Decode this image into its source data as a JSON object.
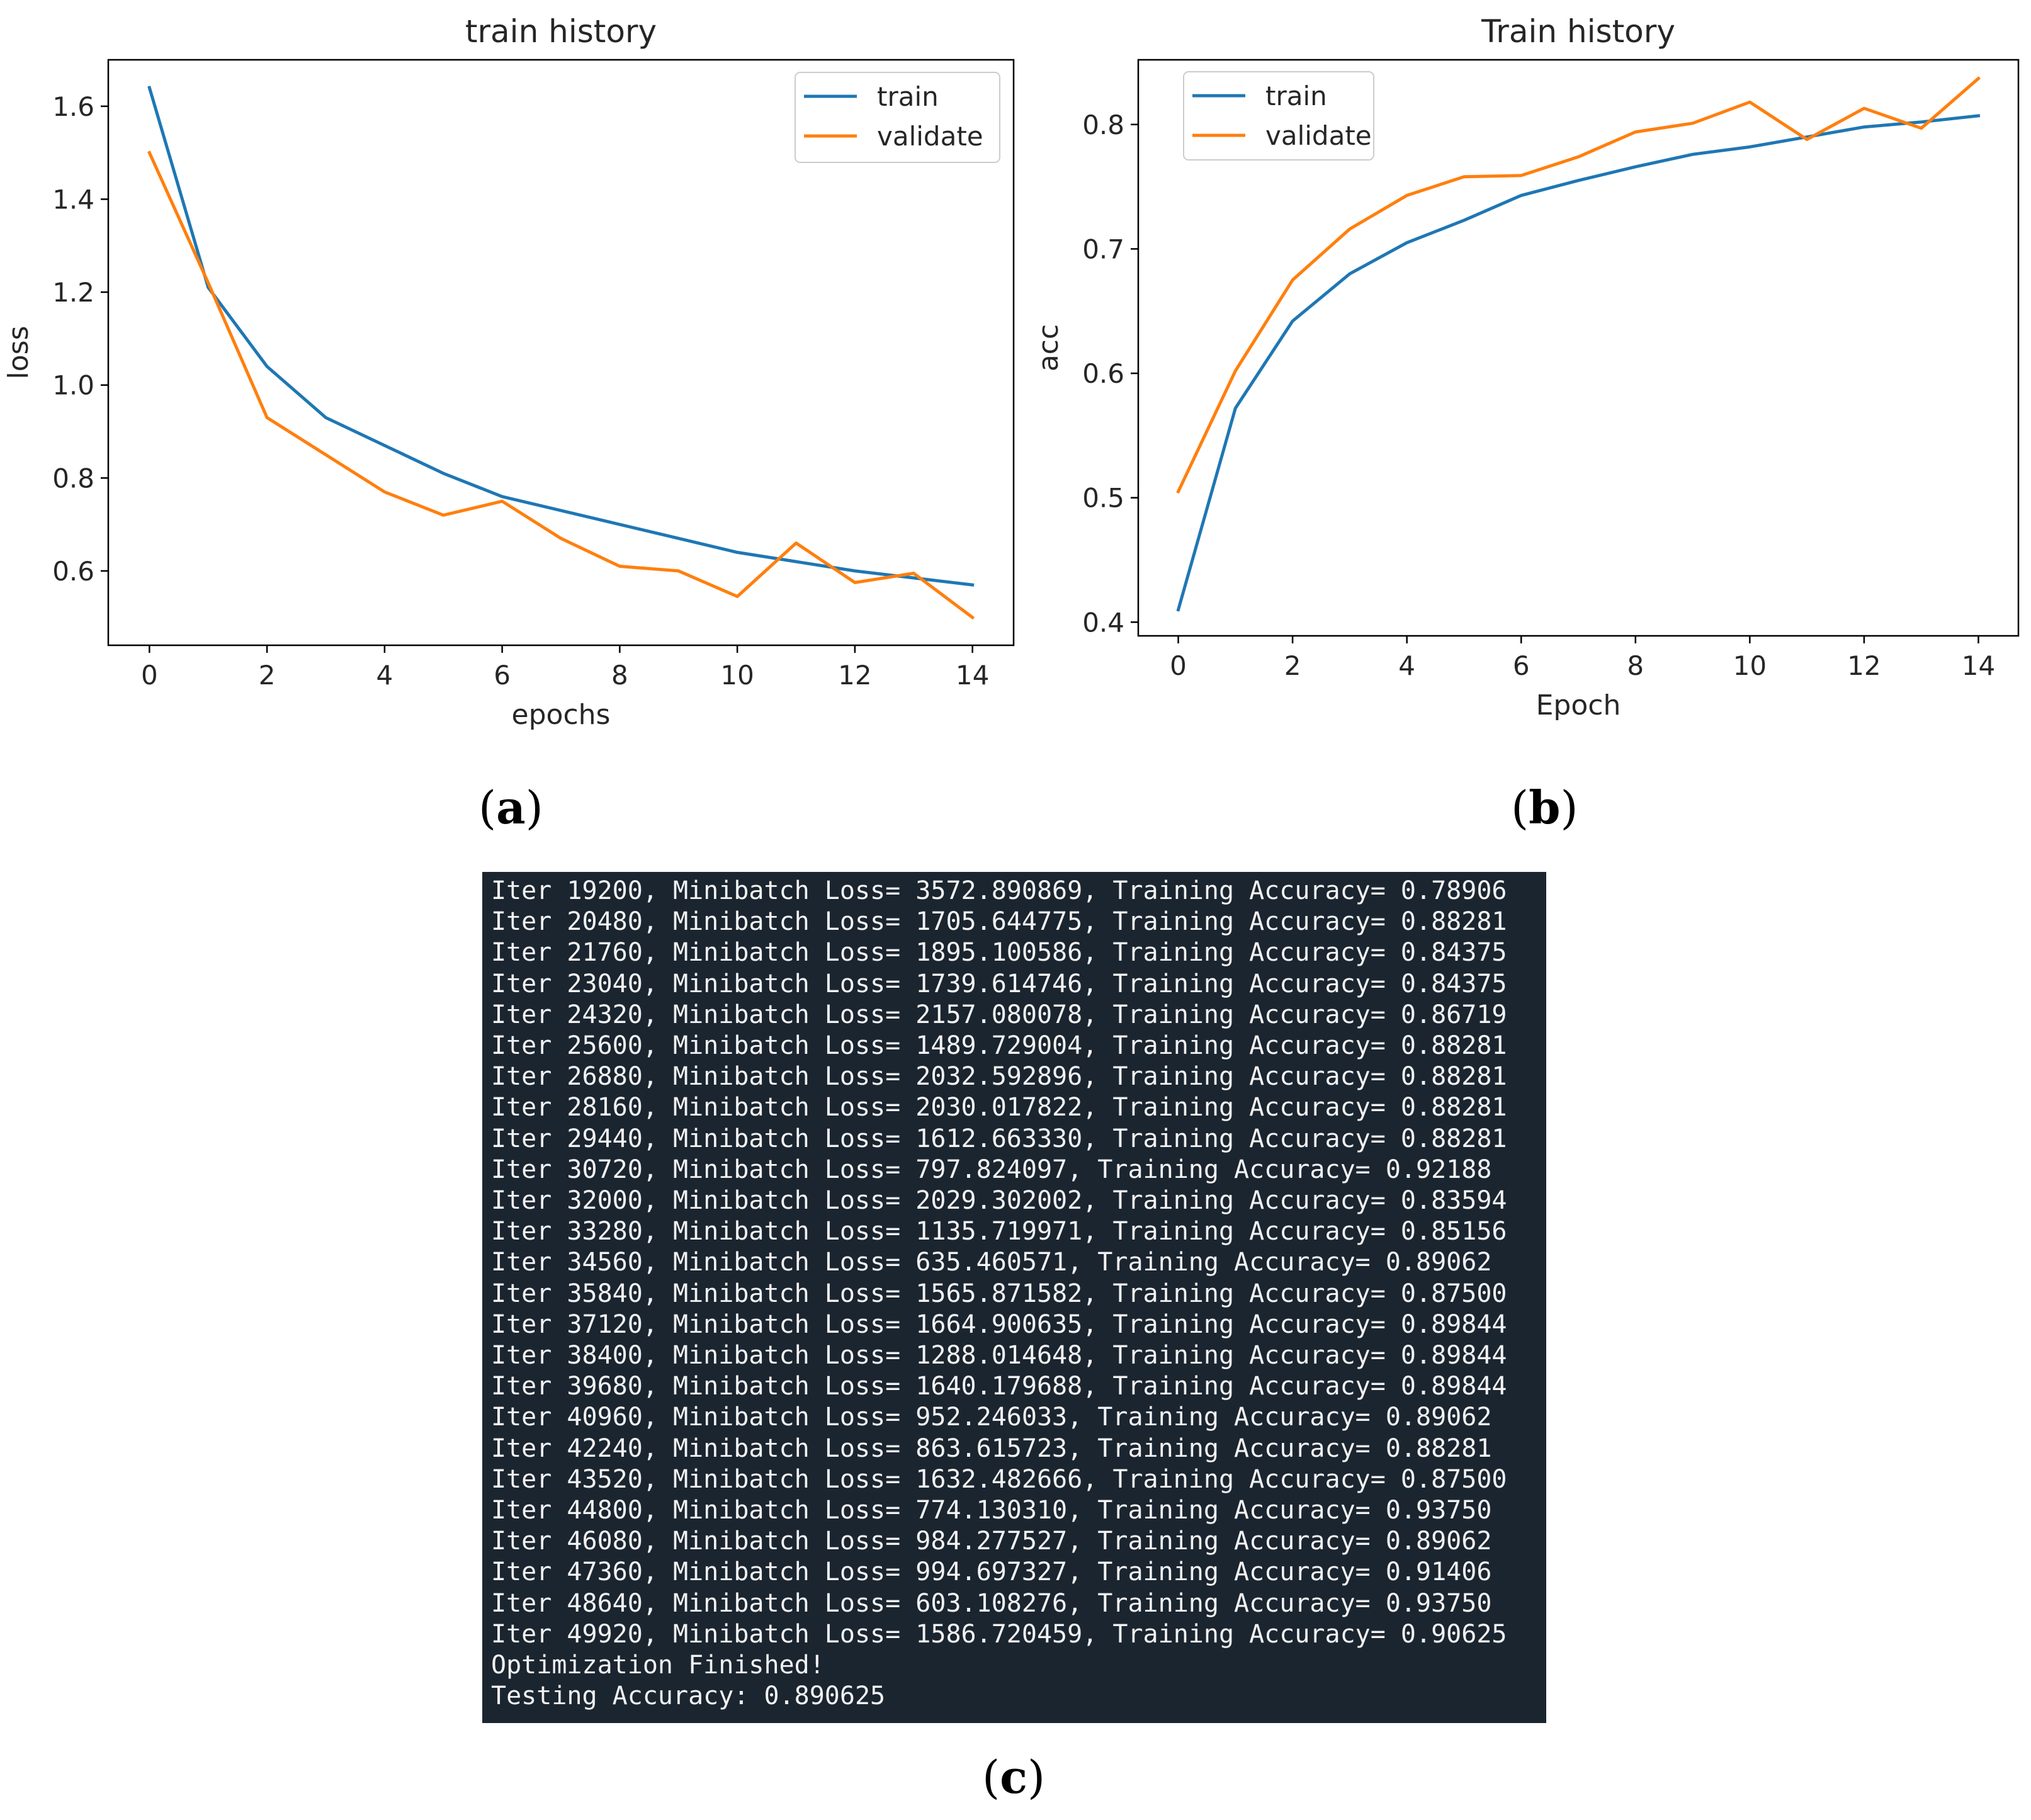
{
  "chart_data": [
    {
      "type": "line",
      "title": "train history",
      "xlabel": "epochs",
      "ylabel": "loss",
      "xlim": [
        -0.7,
        14.7
      ],
      "ylim": [
        0.44,
        1.7
      ],
      "xticks": [
        0,
        2,
        4,
        6,
        8,
        10,
        12,
        14
      ],
      "yticks": [
        0.6,
        0.8,
        1.0,
        1.2,
        1.4,
        1.6
      ],
      "ytick_labels": [
        "0.6",
        "0.8",
        "1.0",
        "1.2",
        "1.4",
        "1.6"
      ],
      "legend": "top-right",
      "x": [
        0,
        1,
        2,
        3,
        4,
        5,
        6,
        7,
        8,
        9,
        10,
        11,
        12,
        13,
        14
      ],
      "series": [
        {
          "name": "train",
          "color": "#1f77b4",
          "values": [
            1.64,
            1.21,
            1.04,
            0.93,
            0.87,
            0.81,
            0.76,
            0.73,
            0.7,
            0.67,
            0.64,
            0.62,
            0.6,
            0.585,
            0.57
          ]
        },
        {
          "name": "validate",
          "color": "#ff7f0e",
          "values": [
            1.5,
            1.22,
            0.93,
            0.85,
            0.77,
            0.72,
            0.75,
            0.67,
            0.61,
            0.6,
            0.545,
            0.66,
            0.575,
            0.595,
            0.5
          ]
        }
      ]
    },
    {
      "type": "line",
      "title": "Train history",
      "xlabel": "Epoch",
      "ylabel": "acc",
      "xlim": [
        -0.7,
        14.7
      ],
      "ylim": [
        0.389,
        0.852
      ],
      "xticks": [
        0,
        2,
        4,
        6,
        8,
        10,
        12,
        14
      ],
      "yticks": [
        0.4,
        0.5,
        0.6,
        0.7,
        0.8
      ],
      "ytick_labels": [
        "0.4",
        "0.5",
        "0.6",
        "0.7",
        "0.8"
      ],
      "legend": "top-left",
      "x": [
        0,
        1,
        2,
        3,
        4,
        5,
        6,
        7,
        8,
        9,
        10,
        11,
        12,
        13,
        14
      ],
      "series": [
        {
          "name": "train",
          "color": "#1f77b4",
          "values": [
            0.41,
            0.572,
            0.642,
            0.68,
            0.705,
            0.723,
            0.743,
            0.755,
            0.766,
            0.776,
            0.782,
            0.79,
            0.798,
            0.802,
            0.807
          ]
        },
        {
          "name": "validate",
          "color": "#ff7f0e",
          "values": [
            0.505,
            0.602,
            0.675,
            0.716,
            0.743,
            0.758,
            0.759,
            0.774,
            0.794,
            0.801,
            0.818,
            0.788,
            0.813,
            0.797,
            0.837
          ]
        }
      ]
    }
  ],
  "panel_labels": {
    "a": "a",
    "b": "b",
    "c": "c"
  },
  "terminal": {
    "lines": [
      "Iter 19200, Minibatch Loss= 3572.890869, Training Accuracy= 0.78906",
      "Iter 20480, Minibatch Loss= 1705.644775, Training Accuracy= 0.88281",
      "Iter 21760, Minibatch Loss= 1895.100586, Training Accuracy= 0.84375",
      "Iter 23040, Minibatch Loss= 1739.614746, Training Accuracy= 0.84375",
      "Iter 24320, Minibatch Loss= 2157.080078, Training Accuracy= 0.86719",
      "Iter 25600, Minibatch Loss= 1489.729004, Training Accuracy= 0.88281",
      "Iter 26880, Minibatch Loss= 2032.592896, Training Accuracy= 0.88281",
      "Iter 28160, Minibatch Loss= 2030.017822, Training Accuracy= 0.88281",
      "Iter 29440, Minibatch Loss= 1612.663330, Training Accuracy= 0.88281",
      "Iter 30720, Minibatch Loss= 797.824097, Training Accuracy= 0.92188",
      "Iter 32000, Minibatch Loss= 2029.302002, Training Accuracy= 0.83594",
      "Iter 33280, Minibatch Loss= 1135.719971, Training Accuracy= 0.85156",
      "Iter 34560, Minibatch Loss= 635.460571, Training Accuracy= 0.89062",
      "Iter 35840, Minibatch Loss= 1565.871582, Training Accuracy= 0.87500",
      "Iter 37120, Minibatch Loss= 1664.900635, Training Accuracy= 0.89844",
      "Iter 38400, Minibatch Loss= 1288.014648, Training Accuracy= 0.89844",
      "Iter 39680, Minibatch Loss= 1640.179688, Training Accuracy= 0.89844",
      "Iter 40960, Minibatch Loss= 952.246033, Training Accuracy= 0.89062",
      "Iter 42240, Minibatch Loss= 863.615723, Training Accuracy= 0.88281",
      "Iter 43520, Minibatch Loss= 1632.482666, Training Accuracy= 0.87500",
      "Iter 44800, Minibatch Loss= 774.130310, Training Accuracy= 0.93750",
      "Iter 46080, Minibatch Loss= 984.277527, Training Accuracy= 0.89062",
      "Iter 47360, Minibatch Loss= 994.697327, Training Accuracy= 0.91406",
      "Iter 48640, Minibatch Loss= 603.108276, Training Accuracy= 0.93750",
      "Iter 49920, Minibatch Loss= 1586.720459, Training Accuracy= 0.90625",
      "Optimization Finished!",
      "Testing Accuracy: 0.890625"
    ]
  }
}
